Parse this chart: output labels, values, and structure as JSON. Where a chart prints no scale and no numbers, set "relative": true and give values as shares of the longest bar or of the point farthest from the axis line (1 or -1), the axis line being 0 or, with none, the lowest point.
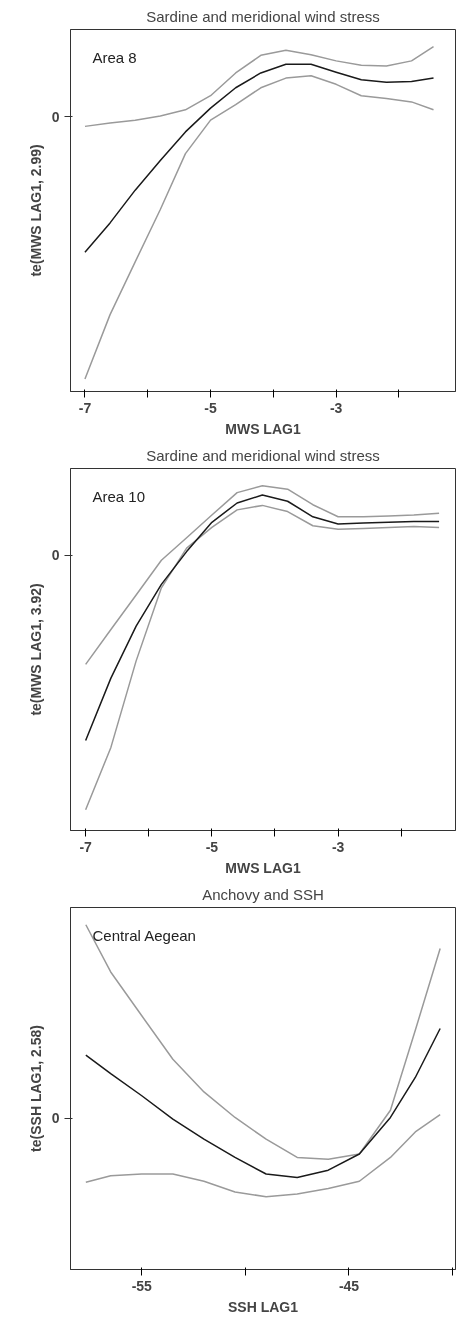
{
  "chart_data": [
    {
      "type": "line",
      "title": "Sardine and meridional wind stress",
      "xlabel": "MWS LAG1",
      "ylabel": "te(MWS LAG1, 2.99)",
      "relative": true,
      "x": [
        -7,
        -6.6,
        -6.2,
        -5.8,
        -5.4,
        -5,
        -4.6,
        -4.2,
        -3.8,
        -3.4,
        -3,
        -2.6,
        -2.2,
        -1.8,
        -1.45
      ],
      "xlim": [
        -7.23,
        -1.1
      ],
      "xticks": [
        -7,
        {
          "value": -6,
          "label": null
        },
        -5,
        {
          "value": -4,
          "label": null
        },
        -3,
        {
          "value": -2,
          "label": null
        }
      ],
      "series": [
        {
          "color": "#9a9a9a",
          "values": [
            0.036,
            0.223,
            0.376,
            0.528,
            0.69,
            0.787,
            0.832,
            0.881,
            0.909,
            0.916,
            0.891,
            0.858,
            0.85,
            0.84,
            0.817
          ]
        },
        {
          "color": "#9a9a9a",
          "values": [
            0.769,
            0.779,
            0.787,
            0.799,
            0.817,
            0.858,
            0.924,
            0.975,
            0.99,
            0.977,
            0.959,
            0.946,
            0.944,
            0.959,
            1.0
          ]
        },
        {
          "color": "#1a1a1a",
          "values": [
            0.404,
            0.489,
            0.584,
            0.67,
            0.753,
            0.822,
            0.881,
            0.924,
            0.949,
            0.949,
            0.926,
            0.904,
            0.897,
            0.899,
            0.909
          ]
        }
      ],
      "annotations": [
        "Area 8",
        "0"
      ]
    },
    {
      "type": "line",
      "title": "Sardine and meridional wind stress",
      "xlabel": "MWS LAG1",
      "ylabel": "te(MWS LAG1, 3.92)",
      "relative": true,
      "x": [
        -7,
        -6.6,
        -6.2,
        -5.8,
        -5.4,
        -5,
        -4.6,
        -4.2,
        -3.8,
        -3.4,
        -3,
        -2.6,
        -2.2,
        -1.8,
        -1.4
      ],
      "xlim": [
        -7.24,
        -1.14
      ],
      "xticks": [
        -7,
        {
          "value": -6,
          "label": null
        },
        -5,
        {
          "value": -4,
          "label": null
        },
        -3,
        {
          "value": -2,
          "label": null
        }
      ],
      "series": [
        {
          "color": "#9a9a9a",
          "values": [
            0.06,
            0.241,
            0.492,
            0.704,
            0.819,
            0.879,
            0.93,
            0.943,
            0.925,
            0.884,
            0.874,
            0.876,
            0.879,
            0.882,
            0.879
          ]
        },
        {
          "color": "#9a9a9a",
          "values": [
            0.482,
            0.583,
            0.683,
            0.784,
            0.849,
            0.915,
            0.98,
            1.0,
            0.99,
            0.945,
            0.91,
            0.91,
            0.912,
            0.915,
            0.92
          ]
        },
        {
          "color": "#1a1a1a",
          "values": [
            0.261,
            0.442,
            0.593,
            0.714,
            0.809,
            0.894,
            0.95,
            0.973,
            0.955,
            0.91,
            0.889,
            0.892,
            0.894,
            0.896,
            0.896
          ]
        }
      ],
      "annotations": [
        "Area 10",
        "0"
      ]
    },
    {
      "type": "line",
      "title": "Anchovy and SSH",
      "xlabel": "SSH LAG1",
      "ylabel": "te(SSH LAG1, 2.58)",
      "relative": true,
      "x": [
        -57.7,
        -56.5,
        -55,
        -53.5,
        -52,
        -50.5,
        -49,
        -47.5,
        -46,
        -44.5,
        -43,
        -41.8,
        -40.6
      ],
      "xlim": [
        -58.44,
        -39.86
      ],
      "xticks": [
        -55,
        {
          "value": -50,
          "label": null
        },
        -45,
        {
          "value": -40,
          "label": null
        }
      ],
      "series": [
        {
          "color": "#9a9a9a",
          "values": [
            0.253,
            0.272,
            0.277,
            0.277,
            0.256,
            0.225,
            0.211,
            0.219,
            0.235,
            0.256,
            0.325,
            0.399,
            0.449
          ]
        },
        {
          "color": "#9a9a9a",
          "values": [
            1.0,
            0.863,
            0.736,
            0.61,
            0.515,
            0.441,
            0.378,
            0.325,
            0.32,
            0.335,
            0.462,
            0.694,
            0.931
          ]
        },
        {
          "color": "#1a1a1a",
          "values": [
            0.622,
            0.568,
            0.504,
            0.436,
            0.378,
            0.325,
            0.277,
            0.267,
            0.288,
            0.335,
            0.441,
            0.557,
            0.699
          ]
        }
      ],
      "annotations": [
        "Central Aegean",
        "0"
      ]
    }
  ]
}
